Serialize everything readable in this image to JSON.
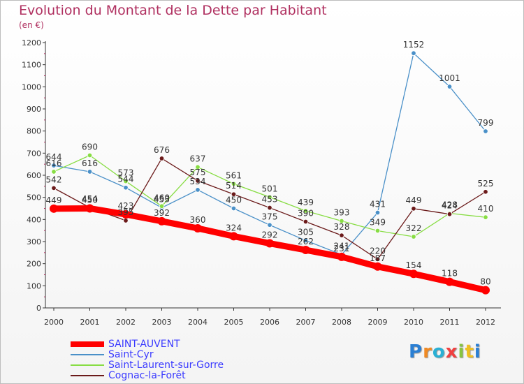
{
  "chart_data": {
    "type": "line",
    "title": "Evolution du Montant de la Dette par Habitant",
    "subtitle": "(en €)",
    "x": [
      "2000",
      "2001",
      "2002",
      "2003",
      "2004",
      "2005",
      "2006",
      "2007",
      "2008",
      "2009",
      "2010",
      "2011",
      "2012"
    ],
    "ylim": [
      0,
      1200
    ],
    "yticks": [
      "0",
      "100",
      "200",
      "300",
      "400",
      "500",
      "600",
      "700",
      "800",
      "900",
      "1000",
      "1100",
      "1200"
    ],
    "grid": false,
    "legend_position": "bottom-left",
    "series": [
      {
        "name": "SAINT-AUVENT",
        "color": "#ff0000",
        "values": [
          449,
          450,
          423,
          392,
          360,
          324,
          292,
          262,
          231,
          187,
          154,
          118,
          80
        ]
      },
      {
        "name": "Saint-Cyr",
        "color": "#4a90c8",
        "values": [
          644,
          616,
          544,
          453,
          534,
          450,
          375,
          305,
          241,
          431,
          1152,
          1001,
          799
        ]
      },
      {
        "name": "Saint-Laurent-sur-Gorre",
        "color": "#88dd44",
        "values": [
          616,
          690,
          573,
          460,
          637,
          561,
          501,
          439,
          393,
          349,
          322,
          428,
          410
        ]
      },
      {
        "name": "Cognac-la-Forêt",
        "color": "#6b1a1a",
        "values": [
          542,
          454,
          395,
          676,
          575,
          514,
          453,
          390,
          328,
          220,
          449,
          424,
          525
        ]
      }
    ]
  },
  "brand": {
    "letters": [
      "P",
      "r",
      "o",
      "x",
      "i",
      "t",
      "i"
    ],
    "colors": [
      "#2a7fd4",
      "#f08a24",
      "#2ab0d4",
      "#f04040",
      "#88c440",
      "#f0c020",
      "#2a7fd4"
    ]
  }
}
